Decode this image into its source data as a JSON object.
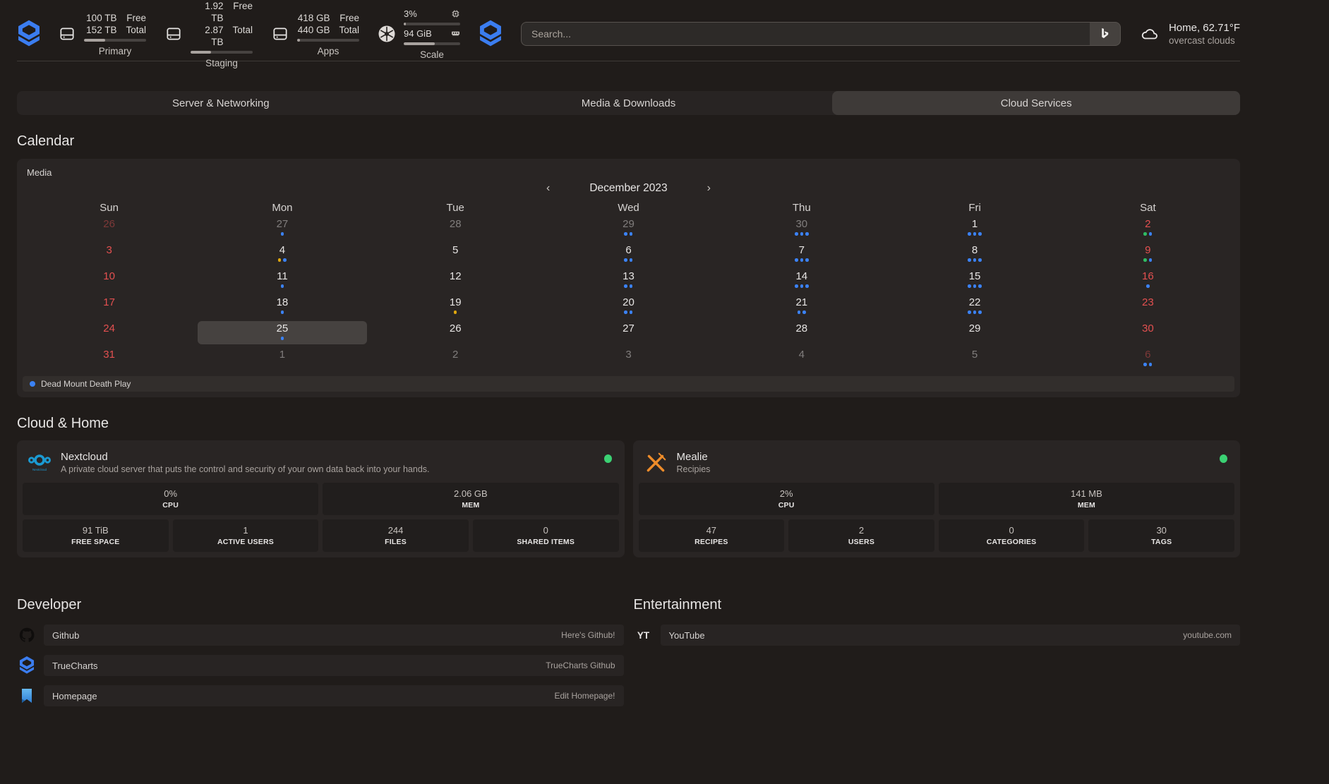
{
  "header": {
    "search": {
      "placeholder": "Search...",
      "engine": "bing"
    },
    "weather": {
      "title": "Home, 62.71°F",
      "subtitle": "overcast clouds"
    },
    "disk_widgets": [
      {
        "name": "Primary",
        "free": "100 TB",
        "free_label": "Free",
        "total": "152 TB",
        "total_label": "Total",
        "progress": 34
      },
      {
        "name": "Staging",
        "free": "1.92 TB",
        "free_label": "Free",
        "total": "2.87 TB",
        "total_label": "Total",
        "progress": 33
      },
      {
        "name": "Apps",
        "free": "418 GB",
        "free_label": "Free",
        "total": "440 GB",
        "total_label": "Total",
        "progress": 5
      }
    ],
    "scale_widget": {
      "name": "Scale",
      "cpu_value": "3%",
      "cpu_progress": 4,
      "mem_value": "94 GiB",
      "mem_progress": 55
    }
  },
  "tabs": [
    {
      "label": "Server & Networking",
      "active": false
    },
    {
      "label": "Media & Downloads",
      "active": false
    },
    {
      "label": "Cloud Services",
      "active": true
    }
  ],
  "calendar": {
    "section_title": "Calendar",
    "widget_label": "Media",
    "month_title": "December 2023",
    "prev": "‹",
    "next": "›",
    "day_headers": [
      "Sun",
      "Mon",
      "Tue",
      "Wed",
      "Thu",
      "Fri",
      "Sat"
    ],
    "dot_colors": {
      "blue": "#3b82f6",
      "yellow": "#dfa70e",
      "green": "#2fbc63"
    },
    "weeks": [
      [
        {
          "day": 26,
          "weekend": true,
          "out": true
        },
        {
          "day": 27,
          "out": true,
          "dots": [
            "blue"
          ]
        },
        {
          "day": 28,
          "out": true
        },
        {
          "day": 29,
          "out": true,
          "dots": [
            "blue",
            "blue"
          ]
        },
        {
          "day": 30,
          "out": true,
          "dots": [
            "blue",
            "blue",
            "blue"
          ]
        },
        {
          "day": 1,
          "dots": [
            "blue",
            "blue",
            "blue"
          ]
        },
        {
          "day": 2,
          "weekend": true,
          "dots": [
            "green",
            "blue"
          ]
        }
      ],
      [
        {
          "day": 3,
          "weekend": true
        },
        {
          "day": 4,
          "dots": [
            "yellow",
            "blue"
          ]
        },
        {
          "day": 5
        },
        {
          "day": 6,
          "dots": [
            "blue",
            "blue"
          ]
        },
        {
          "day": 7,
          "dots": [
            "blue",
            "blue",
            "blue"
          ]
        },
        {
          "day": 8,
          "dots": [
            "blue",
            "blue",
            "blue"
          ]
        },
        {
          "day": 9,
          "weekend": true,
          "dots": [
            "green",
            "blue"
          ]
        }
      ],
      [
        {
          "day": 10,
          "weekend": true
        },
        {
          "day": 11,
          "dots": [
            "blue"
          ]
        },
        {
          "day": 12
        },
        {
          "day": 13,
          "dots": [
            "blue",
            "blue"
          ]
        },
        {
          "day": 14,
          "dots": [
            "blue",
            "blue",
            "blue"
          ]
        },
        {
          "day": 15,
          "dots": [
            "blue",
            "blue",
            "blue"
          ]
        },
        {
          "day": 16,
          "weekend": true,
          "dots": [
            "blue"
          ]
        }
      ],
      [
        {
          "day": 17,
          "weekend": true
        },
        {
          "day": 18,
          "dots": [
            "blue"
          ]
        },
        {
          "day": 19,
          "dots": [
            "yellow"
          ]
        },
        {
          "day": 20,
          "dots": [
            "blue",
            "blue"
          ]
        },
        {
          "day": 21,
          "dots": [
            "blue",
            "blue"
          ]
        },
        {
          "day": 22,
          "dots": [
            "blue",
            "blue",
            "blue"
          ]
        },
        {
          "day": 23,
          "weekend": true
        }
      ],
      [
        {
          "day": 24,
          "weekend": true
        },
        {
          "day": 25,
          "today": true,
          "dots": [
            "blue"
          ]
        },
        {
          "day": 26
        },
        {
          "day": 27
        },
        {
          "day": 28
        },
        {
          "day": 29
        },
        {
          "day": 30,
          "weekend": true
        }
      ],
      [
        {
          "day": 31,
          "weekend": true
        },
        {
          "day": 1,
          "out": true
        },
        {
          "day": 2,
          "out": true
        },
        {
          "day": 3,
          "out": true
        },
        {
          "day": 4,
          "out": true
        },
        {
          "day": 5,
          "out": true
        },
        {
          "day": 6,
          "weekend": true,
          "out": true,
          "dots": [
            "blue",
            "blue"
          ]
        }
      ]
    ],
    "legend": [
      {
        "color": "blue",
        "label": "Dead Mount Death Play"
      }
    ]
  },
  "cloud_home": {
    "section_title": "Cloud & Home",
    "cards": [
      {
        "name": "Nextcloud",
        "description": "A private cloud server that puts the control and security of your own data back into your hands.",
        "icon": "nextcloud-icon",
        "status_color": "#3bd173",
        "rows": [
          [
            {
              "value": "0%",
              "label": "CPU"
            },
            {
              "value": "2.06 GB",
              "label": "MEM"
            }
          ],
          [
            {
              "value": "91 TiB",
              "label": "FREE SPACE"
            },
            {
              "value": "1",
              "label": "ACTIVE USERS"
            },
            {
              "value": "244",
              "label": "FILES"
            },
            {
              "value": "0",
              "label": "SHARED ITEMS"
            }
          ]
        ]
      },
      {
        "name": "Mealie",
        "description": "Recipies",
        "icon": "mealie-icon",
        "status_color": "#3bd173",
        "rows": [
          [
            {
              "value": "2%",
              "label": "CPU"
            },
            {
              "value": "141 MB",
              "label": "MEM"
            }
          ],
          [
            {
              "value": "47",
              "label": "RECIPES"
            },
            {
              "value": "2",
              "label": "USERS"
            },
            {
              "value": "0",
              "label": "CATEGORIES"
            },
            {
              "value": "30",
              "label": "TAGS"
            }
          ]
        ]
      }
    ]
  },
  "service_groups": [
    {
      "title": "Developer",
      "items": [
        {
          "icon": "github-icon",
          "label": "Github",
          "description": "Here's Github!"
        },
        {
          "icon": "truecharts-icon",
          "label": "TrueCharts",
          "description": "TrueCharts Github"
        },
        {
          "icon": "homepage-icon",
          "label": "Homepage",
          "description": "Edit Homepage!"
        }
      ]
    },
    {
      "title": "Entertainment",
      "items": [
        {
          "icon": "youtube-icon",
          "label": "YouTube",
          "description": "youtube.com"
        }
      ]
    }
  ]
}
